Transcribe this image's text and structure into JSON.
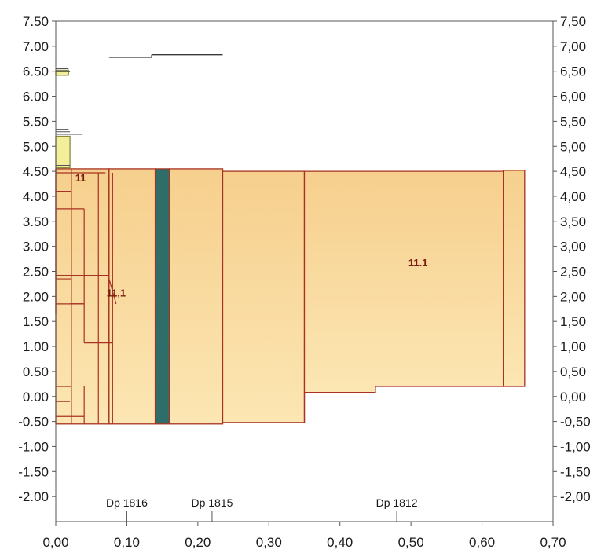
{
  "chart_data": {
    "type": "other",
    "left_axis_ticks": [
      "7.50",
      "7.00",
      "6.50",
      "6.00",
      "5.50",
      "5.00",
      "4.50",
      "4.00",
      "3.50",
      "3.00",
      "2.50",
      "2.00",
      "1.50",
      "1.00",
      "0.50",
      "0.00",
      "-0.50",
      "-1.00",
      "-1.50",
      "-2.00"
    ],
    "right_axis_ticks": [
      "7,50",
      "7,00",
      "6,50",
      "6,00",
      "5,50",
      "5,00",
      "4,50",
      "4,00",
      "3,50",
      "3,00",
      "2,50",
      "2,00",
      "1,50",
      "1,00",
      "0,50",
      "0,00",
      "-0,50",
      "-1,00",
      "-1,50",
      "-2,00"
    ],
    "x_axis_ticks": [
      "0,00",
      "0,10",
      "0,20",
      "0,30",
      "0,40",
      "0,50",
      "0,60",
      "0,70"
    ],
    "y_range": [
      -2.5,
      7.5
    ],
    "x_range": [
      0.0,
      0.7
    ],
    "station_labels": [
      {
        "text": "Dp 1816",
        "x": 0.1
      },
      {
        "text": "Dp 1815",
        "x": 0.22
      },
      {
        "text": "Dp 1812",
        "x": 0.48
      }
    ],
    "zone_labels": [
      {
        "text": "11",
        "x": 0.035,
        "y": 4.3
      },
      {
        "text": "11,1",
        "x": 0.085,
        "y": 2.0
      },
      {
        "text": "11.1",
        "x": 0.51,
        "y": 2.6
      }
    ],
    "colors": {
      "fill_top": "#f7d495",
      "fill_bottom": "#fbe7b4",
      "outline": "#a83222",
      "teal_band": "#2f6e68",
      "yellow_block": "#f3ee9a",
      "axis": "#555555"
    }
  }
}
